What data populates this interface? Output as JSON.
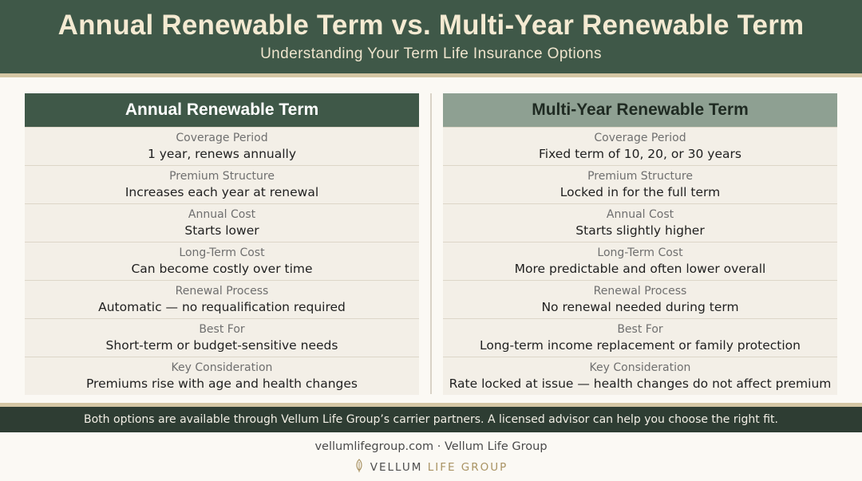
{
  "header": {
    "title": "Annual Renewable Term vs. Multi-Year Renewable Term",
    "subtitle": "Understanding Your Term Life Insurance Options"
  },
  "left": {
    "heading": "Annual Renewable Term",
    "rows": [
      {
        "label": "Coverage Period",
        "value": "1 year, renews annually"
      },
      {
        "label": "Premium Structure",
        "value": "Increases each year at renewal"
      },
      {
        "label": "Annual Cost",
        "value": "Starts lower"
      },
      {
        "label": "Long-Term Cost",
        "value": "Can become costly over time"
      },
      {
        "label": "Renewal Process",
        "value": "Automatic — no requalification required"
      },
      {
        "label": "Best For",
        "value": "Short-term or budget-sensitive needs"
      },
      {
        "label": "Key Consideration",
        "value": "Premiums rise with age and health changes"
      }
    ]
  },
  "right": {
    "heading": "Multi-Year Renewable Term",
    "rows": [
      {
        "label": "Coverage Period",
        "value": "Fixed term of 10, 20, or 30 years"
      },
      {
        "label": "Premium Structure",
        "value": "Locked in for the full term"
      },
      {
        "label": "Annual Cost",
        "value": "Starts slightly higher"
      },
      {
        "label": "Long-Term Cost",
        "value": "More predictable and often lower overall"
      },
      {
        "label": "Renewal Process",
        "value": "No renewal needed during term"
      },
      {
        "label": "Best For",
        "value": "Long-term income replacement or family protection"
      },
      {
        "label": "Key Consideration",
        "value": "Rate locked at issue — health changes do not affect premium"
      }
    ]
  },
  "footer": {
    "note": "Both options are available through Vellum Life Group’s carrier partners. A licensed advisor can help you choose the right fit.",
    "site": "vellumlifegroup.com · Vellum Life Group",
    "brand_main": "VELLUM",
    "brand_sub": "LIFE GROUP"
  },
  "colors": {
    "header_green": "#3f5848",
    "secondary_green": "#8ea092",
    "footer_dark": "#2e3d33",
    "gold": "#d4c6a4"
  }
}
